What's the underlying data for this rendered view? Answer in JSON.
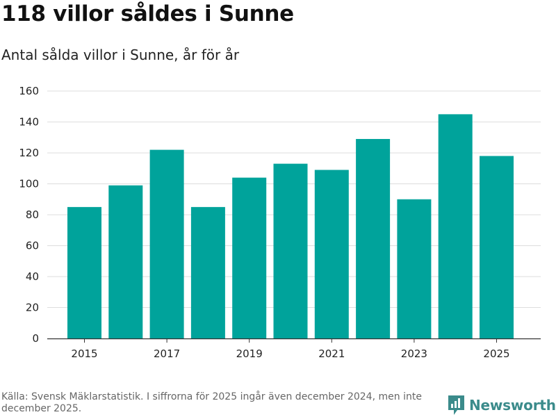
{
  "header": {
    "title": "118 villor såldes i Sunne",
    "subtitle": "Antal sålda villor i Sunne, år för år"
  },
  "chart_data": {
    "type": "bar",
    "categories": [
      "2015",
      "2016",
      "2017",
      "2018",
      "2019",
      "2020",
      "2021",
      "2022",
      "2023",
      "2024",
      "2025"
    ],
    "values": [
      85,
      99,
      122,
      85,
      104,
      113,
      109,
      129,
      90,
      145,
      118
    ],
    "x_tick_labels": [
      "2015",
      "2017",
      "2019",
      "2021",
      "2023",
      "2025"
    ],
    "y_ticks": [
      "0",
      "20",
      "40",
      "60",
      "80",
      "100",
      "120",
      "140",
      "160"
    ],
    "ylim": [
      0,
      160
    ],
    "grid": true,
    "bar_color": "#00a39b",
    "xlabel": "",
    "ylabel": ""
  },
  "footer": {
    "source": "Källa: Svensk Mäklarstatistik. I siffrorna för 2025 ingår även december 2024, men inte december 2025."
  },
  "brand": {
    "name": "Newsworthy",
    "color": "#3b8b8b"
  }
}
